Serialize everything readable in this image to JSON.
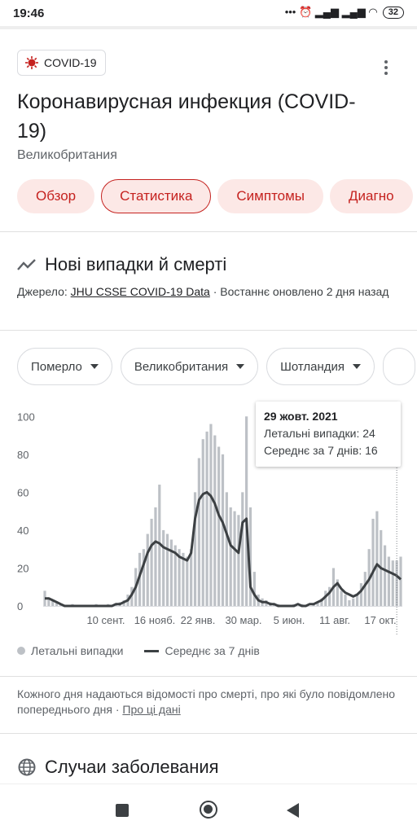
{
  "status_bar": {
    "time": "19:46",
    "icons": "••• ⏰ ▂▄▆ ▂▄▆ ◠",
    "battery": "32"
  },
  "header": {
    "chip_label": "COVID-19",
    "title": "Коронавирусная инфекция (COVID-19)",
    "region": "Великобритания"
  },
  "tabs": [
    {
      "label": "Обзор"
    },
    {
      "label": "Статистика"
    },
    {
      "label": "Симптомы"
    },
    {
      "label": "Диагно"
    }
  ],
  "section": {
    "title": "Нові випадки й смерті",
    "source_prefix": "Джерело: ",
    "source_link": "JHU CSSE COVID-19 Data",
    "source_suffix": " · Востаннє оновлено 2 дня назад"
  },
  "filters": [
    {
      "label": "Померло"
    },
    {
      "label": "Великобритания"
    },
    {
      "label": "Шотландия"
    }
  ],
  "tooltip": {
    "date": "29 жовт. 2021",
    "line1": "Летальні випадки: 24",
    "line2": "Середнє за 7 днів: 16"
  },
  "legend": {
    "bars": "Летальні випадки",
    "line": "Середнє за 7 днів"
  },
  "note": {
    "text": "Кожного дня надаються відомості про смерті, про які було повідомлено попереднього дня",
    "sep": " · ",
    "link": "Про ці дані"
  },
  "cases_title": "Случаи заболевания",
  "colors": {
    "accent": "#c5221f",
    "accent_bg": "#fce8e6",
    "bar": "#bdc1c6",
    "line": "#3c4043"
  },
  "chart_data": {
    "type": "bar",
    "title": "",
    "xlabel": "",
    "ylabel": "",
    "ylim": [
      0,
      110
    ],
    "x_ticks": [
      "10 сент.",
      "16 нояб.",
      "22 янв.",
      "30 мар.",
      "5 июн.",
      "11 авг.",
      "17 окт."
    ],
    "y_ticks": [
      0,
      20,
      40,
      60,
      80,
      100
    ],
    "grid": false,
    "series": [
      {
        "name": "Летальні випадки",
        "type": "bar",
        "color": "#bdc1c6",
        "values": [
          8,
          4,
          3,
          2,
          1,
          0,
          0,
          1,
          0,
          0,
          0,
          0,
          0,
          1,
          0,
          0,
          1,
          0,
          1,
          2,
          3,
          6,
          10,
          20,
          28,
          30,
          38,
          46,
          52,
          64,
          40,
          38,
          35,
          32,
          30,
          28,
          26,
          30,
          60,
          78,
          88,
          92,
          96,
          90,
          84,
          80,
          60,
          52,
          50,
          48,
          60,
          100,
          52,
          18,
          6,
          4,
          3,
          2,
          1,
          1,
          0,
          0,
          0,
          1,
          0,
          1,
          0,
          0,
          1,
          2,
          4,
          8,
          10,
          20,
          14,
          8,
          6,
          3,
          4,
          6,
          12,
          18,
          30,
          46,
          50,
          40,
          32,
          26,
          24,
          24,
          26
        ]
      },
      {
        "name": "Середнє за 7 днів",
        "type": "line",
        "color": "#3c4043",
        "values": [
          4,
          4,
          3,
          2,
          1,
          0,
          0,
          0,
          0,
          0,
          0,
          0,
          0,
          0,
          0,
          0,
          0,
          0,
          1,
          1,
          2,
          3,
          6,
          10,
          16,
          22,
          28,
          32,
          34,
          33,
          31,
          30,
          29,
          28,
          26,
          25,
          24,
          28,
          46,
          56,
          59,
          60,
          58,
          54,
          48,
          44,
          38,
          32,
          30,
          28,
          44,
          46,
          10,
          6,
          3,
          2,
          2,
          1,
          1,
          0,
          0,
          0,
          0,
          0,
          1,
          0,
          0,
          1,
          1,
          2,
          3,
          5,
          7,
          10,
          12,
          9,
          7,
          6,
          5,
          6,
          8,
          11,
          14,
          18,
          22,
          20,
          19,
          18,
          17,
          16,
          14
        ]
      }
    ],
    "highlight": {
      "date": "29 жовт. 2021",
      "deaths": 24,
      "avg7": 16
    }
  }
}
